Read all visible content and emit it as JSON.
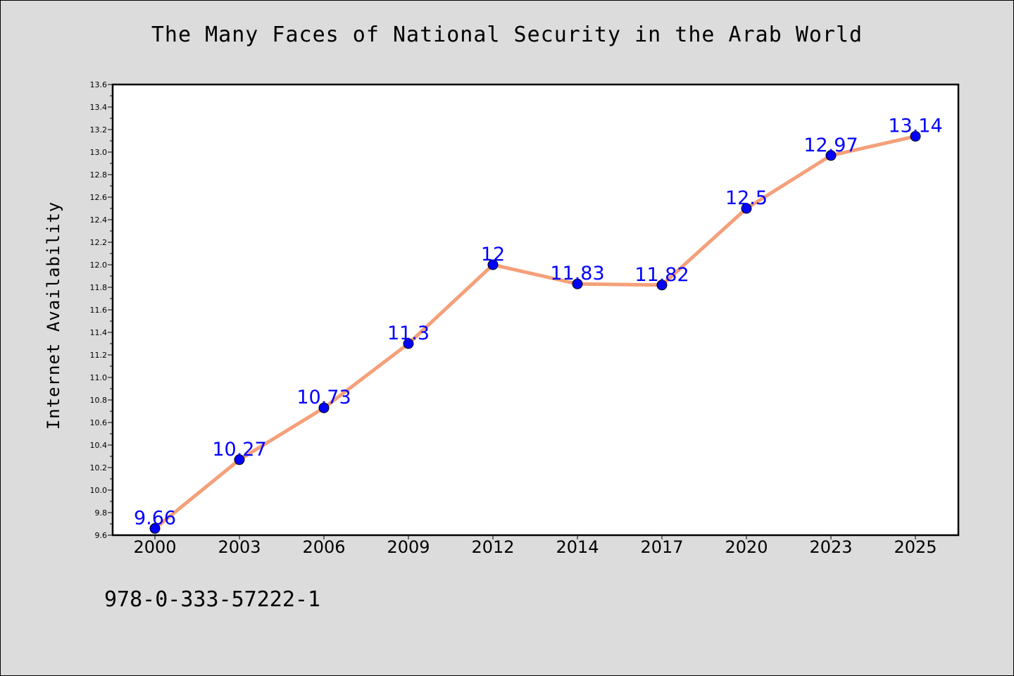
{
  "chart_data": {
    "type": "line",
    "title": "The Many Faces of National Security in the Arab World",
    "xlabel": "",
    "ylabel": "Internet Availability",
    "categories": [
      "2000",
      "2003",
      "2006",
      "2009",
      "2012",
      "2014",
      "2017",
      "2020",
      "2023",
      "2025"
    ],
    "series": [
      {
        "values": [
          9.66,
          10.27,
          10.73,
          11.3,
          12,
          11.83,
          11.82,
          12.5,
          12.97,
          13.14
        ],
        "data_labels": [
          "9.66",
          "10.27",
          "10.73",
          "11.3",
          "12",
          "11.83",
          "11.82",
          "12.5",
          "12.97",
          "13.14"
        ],
        "line_color": "#f4a07a",
        "marker_color": "#0000ff"
      }
    ],
    "ylim": [
      9.6,
      13.6
    ],
    "yticks": [
      "9.6",
      "9.8",
      "10.0",
      "10.2",
      "10.4",
      "10.6",
      "10.8",
      "11.0",
      "11.2",
      "11.4",
      "11.6",
      "11.8",
      "12.0",
      "12.2",
      "12.4",
      "12.6",
      "12.8",
      "13.0",
      "13.2",
      "13.4",
      "13.6"
    ],
    "grid": false,
    "legend": "none"
  },
  "footer": {
    "code": "978-0-333-57222-1"
  },
  "colors": {
    "background": "#dcdcdc",
    "plot_background": "#ffffff",
    "label_color": "#0000ff"
  }
}
